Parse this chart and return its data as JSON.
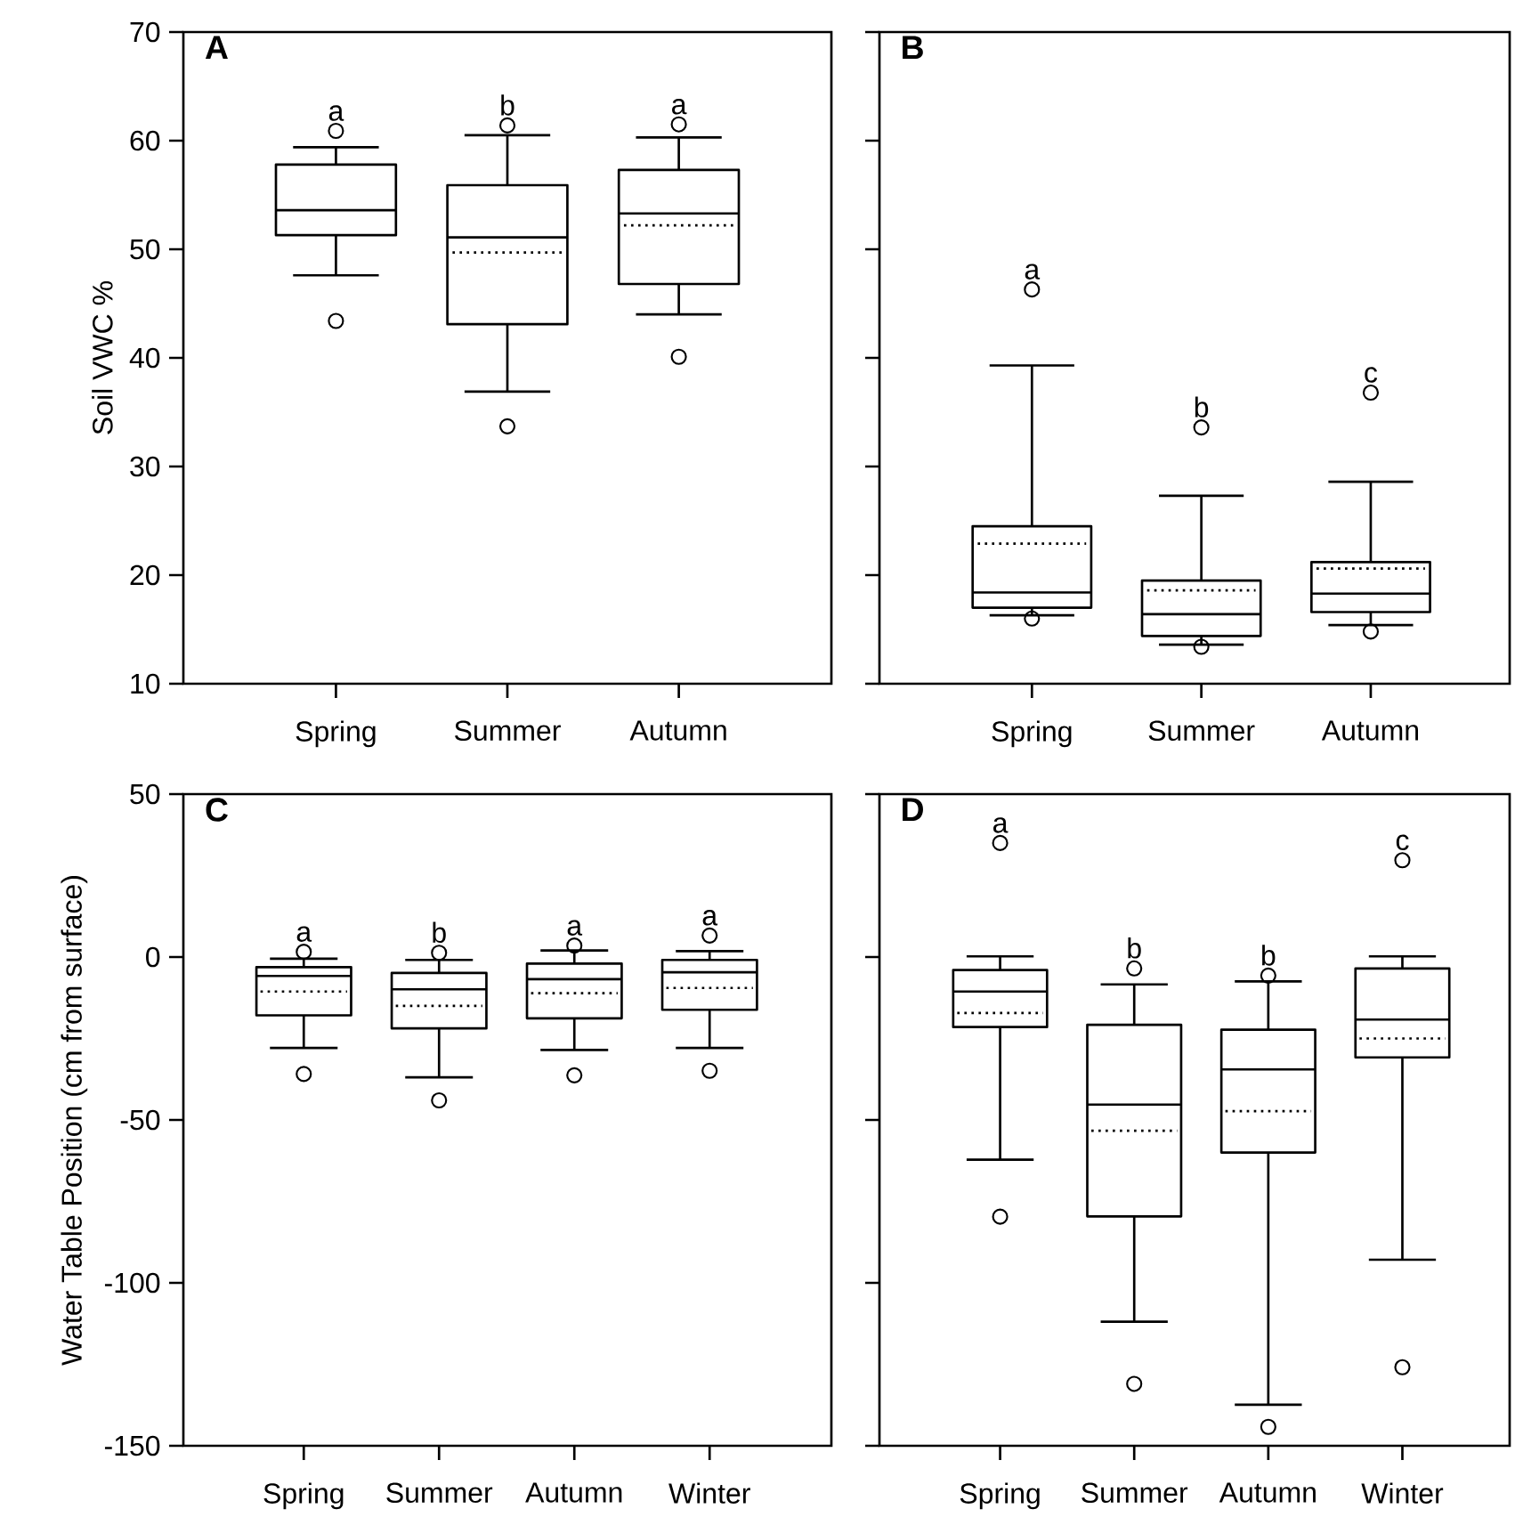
{
  "chart_data": [
    {
      "type": "box",
      "title": "A",
      "ylabel": "Soil VWC %",
      "categories": [
        "Spring",
        "Summer",
        "Autumn"
      ],
      "ylim": [
        10,
        70
      ],
      "yticks": [
        10,
        20,
        30,
        40,
        50,
        60,
        70
      ],
      "marker": "circle",
      "boxes": [
        {
          "low": 47.6,
          "q1": 51.3,
          "median": 53.6,
          "q3": 57.8,
          "high": 59.4,
          "outliers": [
            60.9,
            43.4
          ]
        },
        {
          "low": 36.9,
          "q1": 43.1,
          "median": 51.1,
          "q3": 55.9,
          "high": 60.5,
          "mean": 49.7,
          "outliers": [
            61.4,
            33.7
          ]
        },
        {
          "low": 44.0,
          "q1": 46.8,
          "median": 53.3,
          "q3": 57.3,
          "high": 60.3,
          "mean": 52.2,
          "outliers": [
            61.5,
            40.1
          ]
        }
      ],
      "annotations": [
        "a",
        "b",
        "a"
      ]
    },
    {
      "type": "box",
      "title": "B",
      "categories": [
        "Spring",
        "Summer",
        "Autumn"
      ],
      "ylim": [
        10,
        70
      ],
      "yticks": [
        10,
        20,
        30,
        40,
        50,
        60,
        70
      ],
      "tick_labels": "x",
      "marker": "circle",
      "boxes": [
        {
          "low": 16.3,
          "q1": 17.0,
          "median": 18.4,
          "q3": 24.5,
          "high": 39.3,
          "mean": 22.9,
          "outliers": [
            46.3,
            16.0
          ]
        },
        {
          "low": 13.6,
          "q1": 14.4,
          "median": 16.4,
          "q3": 19.5,
          "high": 27.3,
          "mean": 18.6,
          "outliers": [
            33.6,
            13.4
          ]
        },
        {
          "low": 15.4,
          "q1": 16.6,
          "median": 18.3,
          "q3": 21.2,
          "high": 28.6,
          "mean": 20.6,
          "outliers": [
            36.8,
            14.8
          ]
        }
      ],
      "annotations": [
        "a",
        "b",
        "c"
      ]
    },
    {
      "type": "box",
      "title": "C",
      "ylabel": "Water Table Position (cm from surface)",
      "categories": [
        "Spring",
        "Summer",
        "Autumn",
        "Winter"
      ],
      "ylim": [
        -150,
        50
      ],
      "yticks": [
        -150,
        -100,
        -50,
        0,
        50
      ],
      "marker": "circle",
      "boxes": [
        {
          "low": -27.9,
          "q1": -17.9,
          "median": -5.8,
          "q3": -3.1,
          "high": -0.5,
          "mean": -10.6,
          "outliers": [
            1.6,
            -35.9
          ]
        },
        {
          "low": -36.9,
          "q1": -21.9,
          "median": -9.9,
          "q3": -4.9,
          "high": -0.9,
          "mean": -15.0,
          "outliers": [
            1.3,
            -44.0
          ]
        },
        {
          "low": -28.5,
          "q1": -18.8,
          "median": -6.8,
          "q3": -2.0,
          "high": 2.0,
          "mean": -11.1,
          "outliers": [
            3.5,
            -36.3
          ]
        },
        {
          "low": -27.9,
          "q1": -16.2,
          "median": -4.7,
          "q3": -0.9,
          "high": 1.8,
          "mean": -9.5,
          "outliers": [
            6.6,
            -34.9
          ]
        }
      ],
      "annotations": [
        "a",
        "b",
        "a",
        "a"
      ]
    },
    {
      "type": "box",
      "title": "D",
      "categories": [
        "Spring",
        "Summer",
        "Autumn",
        "Winter"
      ],
      "ylim": [
        -150,
        50
      ],
      "yticks": [
        -150,
        -100,
        -50,
        0,
        50
      ],
      "tick_labels": "x",
      "marker": "circle",
      "boxes": [
        {
          "low": -62.2,
          "q1": -21.5,
          "median": -10.6,
          "q3": -4.0,
          "high": 0.2,
          "mean": -17.2,
          "outliers": [
            35.0,
            -79.7
          ]
        },
        {
          "low": -111.9,
          "q1": -79.6,
          "median": -45.3,
          "q3": -20.8,
          "high": -8.4,
          "mean": -53.3,
          "outliers": [
            -3.5,
            -131.0
          ]
        },
        {
          "low": -137.4,
          "q1": -60.0,
          "median": -34.5,
          "q3": -22.3,
          "high": -7.5,
          "mean": -47.3,
          "outliers": [
            -5.7,
            -144.2
          ]
        },
        {
          "low": -92.9,
          "q1": -30.8,
          "median": -19.2,
          "q3": -3.5,
          "high": 0.2,
          "mean": -25.0,
          "outliers": [
            29.7,
            -125.9
          ]
        }
      ],
      "annotations": [
        "a",
        "b",
        "b",
        "c"
      ]
    }
  ]
}
